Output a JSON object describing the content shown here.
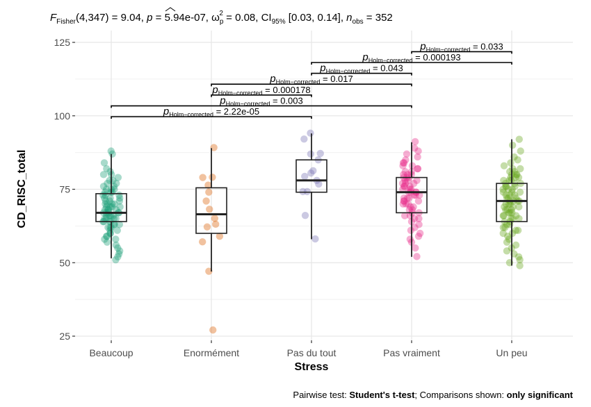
{
  "chart_data": {
    "type": "boxplot",
    "subtitle": {
      "F_label": "F",
      "F_sub": "Fisher",
      "F_args": "(4,347) = 9.04, ",
      "p_label": "p",
      "p_value": " = 5.94e-07, ",
      "omega_label": "ω",
      "omega_sup": "2",
      "omega_sub": "p",
      "omega_value": " = 0.08, CI",
      "ci_sub": "95%",
      "ci_value": " [0.03, 0.14], ",
      "n_label": "n",
      "n_sub": "obs",
      "n_value": " = 352"
    },
    "xlabel": "Stress",
    "ylabel": "CD_RISC_total",
    "ylim": [
      20,
      128
    ],
    "yticks": [
      25,
      50,
      75,
      100,
      125
    ],
    "minor_yticks": [
      37.5,
      62.5,
      87.5,
      112.5
    ],
    "categories": [
      "Beaucoup",
      "Enormément",
      "Pas du tout",
      "Pas vraiment",
      "Un peu"
    ],
    "groups": [
      {
        "name": "Beaucoup",
        "color": "#1B9E77",
        "q1": 64,
        "median": 67,
        "q3": 73.5,
        "whisker_low": 51.5,
        "whisker_high": 87,
        "points": [
          88,
          87,
          84,
          82,
          81,
          80,
          80,
          79,
          78,
          78,
          77,
          77,
          76,
          76,
          75,
          75,
          75,
          74,
          74,
          74,
          73,
          73,
          73,
          72,
          72,
          72,
          71,
          71,
          71,
          70,
          70,
          70,
          70,
          69,
          69,
          69,
          69,
          68,
          68,
          68,
          68,
          67,
          67,
          67,
          67,
          67,
          66,
          66,
          66,
          66,
          65,
          65,
          65,
          65,
          64,
          64,
          64,
          64,
          63,
          63,
          63,
          62,
          62,
          62,
          61,
          61,
          60,
          60,
          59,
          59,
          58,
          58,
          57,
          56,
          55,
          54,
          53,
          52,
          51
        ]
      },
      {
        "name": "Enormément",
        "color": "#D95F02",
        "q1": 60,
        "median": 66.5,
        "q3": 75.5,
        "whisker_low": 47,
        "whisker_high": 89,
        "points": [
          89.2,
          79.1,
          79,
          76.4,
          74,
          71,
          68.2,
          65.1,
          63.1,
          62.2,
          59,
          57.1,
          47.1,
          27.1
        ]
      },
      {
        "name": "Pas du tout",
        "color": "#7570B3",
        "q1": 74,
        "median": 78,
        "q3": 85,
        "whisker_low": 58,
        "whisker_high": 94,
        "points": [
          94.1,
          92.1,
          87.2,
          87,
          85,
          81.3,
          80.5,
          79.4,
          78,
          76.8,
          74.2,
          74.2,
          66.1,
          58.1
        ]
      },
      {
        "name": "Pas vraiment",
        "color": "#E7298A",
        "q1": 67,
        "median": 74,
        "q3": 79,
        "whisker_low": 52,
        "whisker_high": 91,
        "points": [
          91.2,
          89,
          88,
          87,
          86,
          85,
          84,
          84,
          83,
          83,
          82,
          82,
          81,
          81,
          80,
          80,
          80,
          79,
          79,
          79,
          78,
          78,
          78,
          77,
          77,
          77,
          76,
          76,
          76,
          75,
          75,
          75,
          74,
          74,
          74,
          74,
          73,
          73,
          73,
          72,
          72,
          72,
          71,
          71,
          71,
          70,
          70,
          70,
          69,
          69,
          68,
          68,
          67,
          67,
          66,
          66,
          65,
          65,
          64,
          63,
          62,
          61,
          60,
          59,
          58,
          57,
          55,
          52.1
        ]
      },
      {
        "name": "Un peu",
        "color": "#66A61E",
        "q1": 64,
        "median": 71,
        "q3": 77,
        "whisker_low": 49,
        "whisker_high": 92,
        "points": [
          92,
          90,
          88,
          86,
          85,
          84,
          83,
          82,
          82,
          81,
          81,
          80,
          80,
          80,
          79,
          79,
          79,
          78,
          78,
          78,
          77,
          77,
          77,
          76,
          76,
          76,
          75,
          75,
          75,
          74,
          74,
          74,
          73,
          73,
          73,
          72,
          72,
          72,
          71,
          71,
          71,
          71,
          70,
          70,
          70,
          69,
          69,
          69,
          68,
          68,
          68,
          67,
          67,
          67,
          66,
          66,
          66,
          65,
          65,
          65,
          64,
          64,
          63,
          63,
          62,
          62,
          61,
          61,
          60,
          60,
          59,
          58,
          57,
          56,
          55,
          54,
          53,
          52,
          51,
          50,
          49
        ]
      }
    ],
    "comparisons": [
      {
        "from": "Beaucoup",
        "to": "Pas du tout",
        "p_label": "p",
        "p_sub": "Holm−corrected",
        "p_value": " = 2.22e-05",
        "level": 0
      },
      {
        "from": "Beaucoup",
        "to": "Pas vraiment",
        "p_label": "p",
        "p_sub": "Holm−corrected",
        "p_value": " = 0.003",
        "level": 1
      },
      {
        "from": "Enormément",
        "to": "Pas du tout",
        "p_label": "p",
        "p_sub": "Holm−corrected",
        "p_value": " = 0.000178",
        "level": 2
      },
      {
        "from": "Enormément",
        "to": "Pas vraiment",
        "p_label": "p",
        "p_sub": "Holm−corrected",
        "p_value": " = 0.017",
        "level": 3
      },
      {
        "from": "Pas du tout",
        "to": "Pas vraiment",
        "p_label": "p",
        "p_sub": "Holm−corrected",
        "p_value": " = 0.043",
        "level": 4
      },
      {
        "from": "Pas du tout",
        "to": "Un peu",
        "p_label": "p",
        "p_sub": "Holm−corrected",
        "p_value": " = 0.000193",
        "level": 5
      },
      {
        "from": "Pas vraiment",
        "to": "Un peu",
        "p_label": "p",
        "p_sub": "Holm−corrected",
        "p_value": " = 0.033",
        "level": 6
      }
    ],
    "caption": {
      "prefix": "Pairwise test: ",
      "test": "Student's t-test",
      "middle": "; Comparisons shown: ",
      "shown": "only significant"
    },
    "grid": true,
    "legend": "none"
  }
}
